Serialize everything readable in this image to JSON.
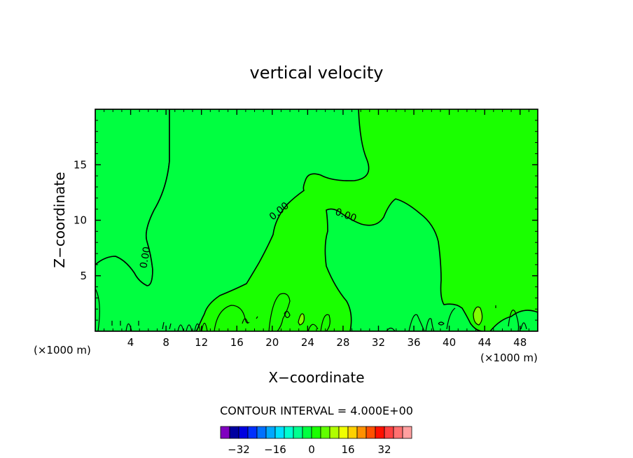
{
  "chart_data": {
    "type": "heatmap",
    "title": "vertical velocity",
    "xlabel": "X−coordinate",
    "ylabel": "Z−coordinate",
    "x_unit": "(×1000 m)",
    "y_unit": "(×1000 m)",
    "xlim": [
      0,
      50
    ],
    "ylim": [
      0,
      20
    ],
    "x_ticks": [
      4,
      8,
      12,
      16,
      20,
      24,
      28,
      32,
      36,
      40,
      44,
      48
    ],
    "y_ticks": [
      5,
      10,
      15
    ],
    "x_tick_labels": [
      "4",
      "8",
      "12",
      "16",
      "20",
      "24",
      "28",
      "32",
      "36",
      "40",
      "44",
      "48"
    ],
    "y_tick_labels": [
      "5",
      "10",
      "15"
    ],
    "contour_interval_text": "CONTOUR INTERVAL = 4.000E+00",
    "contour_labels": [
      {
        "text": "0.00",
        "x": 21.0,
        "y": 10.6,
        "angle": -40
      },
      {
        "text": "0.00",
        "x": 28.2,
        "y": 10.2,
        "angle": 20
      },
      {
        "text": "0.00",
        "x": 6.0,
        "y": 6.6,
        "angle": -80
      }
    ],
    "field_colors": {
      "negative_0_to_4": "#00ff40",
      "positive_0_to_4": "#1aff00",
      "positive_4_to_8": "#80ff00"
    },
    "colorbar": {
      "colors": [
        "#8000c0",
        "#0000a0",
        "#0000e0",
        "#0030ff",
        "#0070ff",
        "#00a8ff",
        "#00e0ff",
        "#00ffd0",
        "#00ff90",
        "#00ff40",
        "#1aff00",
        "#60ff00",
        "#b0ff00",
        "#f0ff00",
        "#ffd000",
        "#ff9000",
        "#ff5000",
        "#ff1000",
        "#ff4040",
        "#ff7070",
        "#ffa0a0"
      ],
      "tick_labels": [
        "−32",
        "−16",
        "0",
        "16",
        "32"
      ],
      "tick_values": [
        -32,
        -16,
        0,
        16,
        32
      ],
      "vmin": -40,
      "vmax": 44
    }
  }
}
